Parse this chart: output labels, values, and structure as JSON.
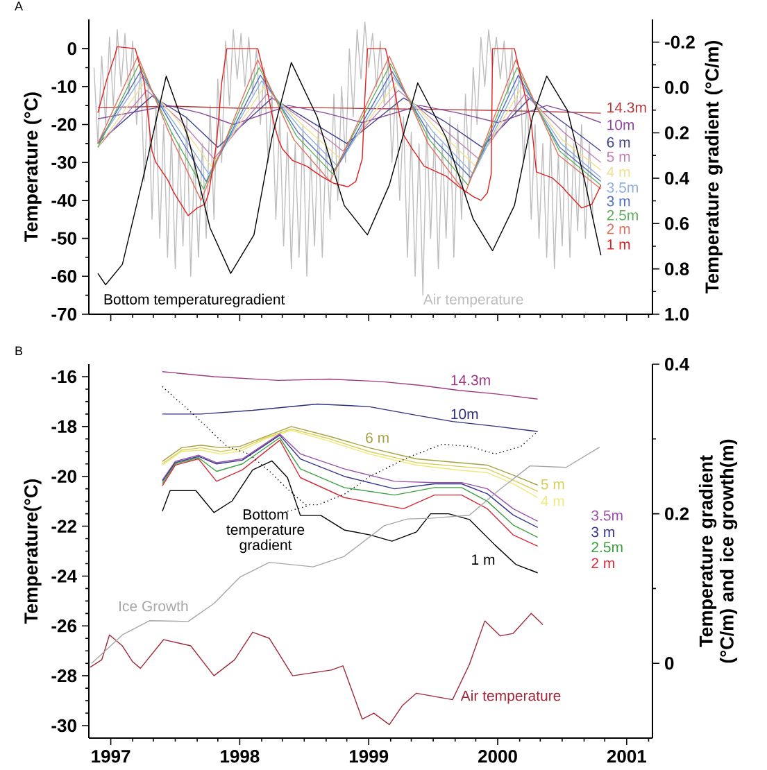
{
  "chart_data": [
    {
      "type": "line",
      "title": "A",
      "ylabel": "Temperature (°C)",
      "y2label": "Temperature gradient (°C/m)",
      "xlim": [
        1996.83,
        2001.2
      ],
      "ylim": [
        -70,
        7.7
      ],
      "y2lim": [
        1.0,
        -0.3
      ],
      "tick_labels": "y",
      "xticks": [
        1997,
        1998,
        1999,
        2000,
        2001,
        {
          "value": 1997.17,
          "label": null
        },
        {
          "value": 1997.33,
          "label": null
        },
        {
          "value": 1997.5,
          "label": null
        },
        {
          "value": 1997.67,
          "label": null
        },
        {
          "value": 1997.83,
          "label": null
        },
        {
          "value": 1998.17,
          "label": null
        },
        {
          "value": 1998.33,
          "label": null
        },
        {
          "value": 1998.5,
          "label": null
        },
        {
          "value": 1998.67,
          "label": null
        },
        {
          "value": 1998.83,
          "label": null
        },
        {
          "value": 1999.17,
          "label": null
        },
        {
          "value": 1999.33,
          "label": null
        },
        {
          "value": 1999.5,
          "label": null
        },
        {
          "value": 1999.67,
          "label": null
        },
        {
          "value": 1999.83,
          "label": null
        },
        {
          "value": 2000.17,
          "label": null
        },
        {
          "value": 2000.33,
          "label": null
        },
        {
          "value": 2000.5,
          "label": null
        },
        {
          "value": 2000.67,
          "label": null
        },
        {
          "value": 2000.83,
          "label": null
        },
        {
          "value": 2001.17,
          "label": null
        }
      ],
      "yticks": [
        0,
        -10,
        -20,
        -30,
        -40,
        -50,
        -60,
        -70,
        {
          "value": -5,
          "label": null
        },
        {
          "value": -15,
          "label": null
        },
        {
          "value": -25,
          "label": null
        },
        {
          "value": -35,
          "label": null
        },
        {
          "value": -45,
          "label": null
        },
        {
          "value": -55,
          "label": null
        },
        {
          "value": -65,
          "label": null
        }
      ],
      "y2ticks": [
        -0.2,
        {
          "value": 0,
          "label": "0.0"
        },
        0.2,
        0.4,
        0.6,
        0.8,
        {
          "value": 1,
          "label": "1.0"
        },
        {
          "value": -0.1,
          "label": null
        },
        {
          "value": 0.1,
          "label": null
        },
        {
          "value": 0.3,
          "label": null
        },
        {
          "value": 0.5,
          "label": null
        },
        {
          "value": 0.7,
          "label": null
        },
        {
          "value": 0.9,
          "label": null
        }
      ],
      "series": [
        {
          "name": "Air temperature",
          "color": "#bdbdbd",
          "x": [
            1996.87,
            1996.9,
            1996.93,
            1996.96,
            1996.99,
            1997.02,
            1997.05,
            1997.08,
            1997.11,
            1997.14,
            1997.17,
            1997.2,
            1997.23,
            1997.26,
            1997.29,
            1997.32,
            1997.35,
            1997.38,
            1997.41,
            1997.44,
            1997.47,
            1997.5,
            1997.53,
            1997.56,
            1997.59,
            1997.62,
            1997.65,
            1997.68,
            1997.71,
            1997.74,
            1997.77,
            1997.8,
            1997.83,
            1997.86,
            1997.89,
            1997.92,
            1997.95,
            1997.98,
            1998.01,
            1998.04,
            1998.07,
            1998.1,
            1998.13,
            1998.16,
            1998.19,
            1998.22,
            1998.25,
            1998.28,
            1998.31,
            1998.34,
            1998.37,
            1998.4,
            1998.43,
            1998.46,
            1998.49,
            1998.52,
            1998.55,
            1998.58,
            1998.61,
            1998.64,
            1998.67,
            1998.7,
            1998.73,
            1998.76,
            1998.79,
            1998.82,
            1998.85,
            1998.88,
            1998.91,
            1998.94,
            1998.97,
            1999.0,
            1999.03,
            1999.06,
            1999.09,
            1999.12,
            1999.15,
            1999.18,
            1999.21,
            1999.24,
            1999.27,
            1999.3,
            1999.33,
            1999.36,
            1999.39,
            1999.42,
            1999.45,
            1999.48,
            1999.51,
            1999.54,
            1999.57,
            1999.6,
            1999.63,
            1999.66,
            1999.69,
            1999.72,
            1999.75,
            1999.78,
            1999.81,
            1999.84,
            1999.87,
            1999.9,
            1999.93,
            1999.96,
            1999.99,
            2000.02,
            2000.05,
            2000.08,
            2000.11,
            2000.14,
            2000.17,
            2000.2,
            2000.23,
            2000.26,
            2000.29,
            2000.32,
            2000.35,
            2000.38,
            2000.41,
            2000.44,
            2000.47,
            2000.5,
            2000.53,
            2000.56,
            2000.59,
            2000.62,
            2000.65,
            2000.68,
            2000.71,
            2000.74
          ],
          "values": [
            -5,
            -25,
            -2,
            -20,
            3,
            -15,
            5,
            -10,
            4,
            -12,
            2,
            -20,
            -5,
            -35,
            -10,
            -45,
            -15,
            -50,
            -20,
            -55,
            -22,
            -58,
            -25,
            -52,
            -18,
            -60,
            -28,
            -55,
            -25,
            -50,
            -15,
            -45,
            -8,
            -30,
            2,
            -15,
            5,
            -8,
            4,
            -10,
            3,
            -12,
            0,
            -20,
            -5,
            -30,
            -12,
            -45,
            -18,
            -52,
            -22,
            -58,
            -25,
            -55,
            -20,
            -60,
            -28,
            -52,
            -20,
            -55,
            -25,
            -45,
            -12,
            -40,
            -10,
            -30,
            0,
            -18,
            5,
            -8,
            7,
            -5,
            4,
            -10,
            2,
            -15,
            -3,
            -30,
            -10,
            -40,
            -18,
            -55,
            -22,
            -60,
            -25,
            -65,
            -20,
            -50,
            -22,
            -58,
            -25,
            -50,
            -18,
            -55,
            -20,
            -45,
            -12,
            -35,
            -5,
            -20,
            3,
            -10,
            5,
            -5,
            3,
            -8,
            2,
            -12,
            0,
            -18,
            -5,
            -30,
            -12,
            -45,
            -20,
            -50,
            -25,
            -55,
            -22,
            -58,
            -28,
            -52,
            -20,
            -55,
            -25,
            -48,
            -20,
            -50,
            -25,
            -45
          ]
        },
        {
          "name": "14.3m",
          "color": "#b03a3a",
          "x": [
            1996.9,
            1997.5,
            1998.0,
            1998.5,
            1999.0,
            1999.5,
            2000.0,
            2000.5,
            2000.8
          ],
          "values": [
            -15.5,
            -15.2,
            -15.7,
            -15.5,
            -15.8,
            -16,
            -16.3,
            -16.7,
            -17
          ]
        },
        {
          "name": "10m",
          "color": "#8a4a9a",
          "x": [
            1996.9,
            1997.45,
            1997.7,
            1997.95,
            1998.38,
            1998.67,
            1998.95,
            1999.4,
            1999.7,
            2000.0,
            2000.38,
            2000.6,
            2000.8
          ],
          "values": [
            -18.5,
            -15,
            -17,
            -20,
            -15,
            -17,
            -19.5,
            -15,
            -17,
            -19.5,
            -15,
            -17,
            -19.5
          ]
        },
        {
          "name": "6 m",
          "color": "#404090",
          "x": [
            1996.9,
            1997.32,
            1997.58,
            1997.83,
            1998.25,
            1998.54,
            1998.83,
            1999.27,
            1999.58,
            1999.88,
            2000.25,
            2000.53,
            2000.8
          ],
          "values": [
            -25,
            -12.5,
            -18,
            -26,
            -13,
            -19,
            -25,
            -13,
            -19,
            -26,
            -13,
            -20,
            -27
          ]
        },
        {
          "name": "5 m",
          "color": "#c080b0",
          "x": [
            1996.9,
            1997.28,
            1997.54,
            1997.8,
            1998.21,
            1998.5,
            1998.8,
            1999.23,
            1999.54,
            1999.85,
            2000.21,
            2000.51,
            2000.8
          ],
          "values": [
            -26,
            -11,
            -19,
            -29,
            -12,
            -19,
            -27,
            -11,
            -20,
            -29,
            -12,
            -22,
            -30
          ]
        },
        {
          "name": "4 m",
          "color": "#f0e090",
          "x": [
            1996.9,
            1997.26,
            1997.52,
            1997.78,
            1998.19,
            1998.48,
            1998.78,
            1999.21,
            1999.52,
            1999.83,
            2000.19,
            2000.5,
            2000.8
          ],
          "values": [
            -26,
            -9,
            -19,
            -31,
            -10,
            -20,
            -29,
            -9,
            -21,
            -31,
            -10,
            -24,
            -32
          ]
        },
        {
          "name": "3.5m",
          "color": "#90b0e0",
          "x": [
            1996.9,
            1997.24,
            1997.5,
            1997.76,
            1998.17,
            1998.47,
            1998.76,
            1999.19,
            1999.5,
            1999.81,
            2000.17,
            2000.49,
            2000.8
          ],
          "values": [
            -25,
            -7.5,
            -20,
            -33,
            -8.5,
            -21,
            -31,
            -7.5,
            -22,
            -33,
            -8.5,
            -25,
            -34
          ]
        },
        {
          "name": "3 m",
          "color": "#5070c0",
          "x": [
            1996.9,
            1997.23,
            1997.49,
            1997.74,
            1998.16,
            1998.45,
            1998.74,
            1999.18,
            1999.48,
            1999.79,
            2000.16,
            2000.48,
            2000.8
          ],
          "values": [
            -25,
            -6,
            -21,
            -35,
            -7,
            -22,
            -32,
            -6,
            -23,
            -34,
            -7,
            -26,
            -35
          ]
        },
        {
          "name": "2.5m",
          "color": "#60b060",
          "x": [
            1996.9,
            1997.22,
            1997.47,
            1997.72,
            1998.15,
            1998.44,
            1998.72,
            1999.17,
            1999.47,
            1999.77,
            2000.15,
            2000.48,
            2000.8
          ],
          "values": [
            -26,
            -4,
            -22,
            -37,
            -5,
            -23,
            -33,
            -4,
            -24,
            -36,
            -5,
            -27,
            -36
          ]
        },
        {
          "name": "2 m",
          "color": "#e07060",
          "x": [
            1996.9,
            1997.21,
            1997.45,
            1997.7,
            1998.14,
            1998.42,
            1998.7,
            1999.16,
            1999.46,
            1999.75,
            2000.14,
            2000.47,
            2000.8
          ],
          "values": [
            -25,
            -2,
            -22,
            -40,
            -3,
            -24,
            -35,
            -2,
            -25,
            -38,
            -3,
            -28,
            -37
          ]
        },
        {
          "name": "1 m",
          "color": "#e02020",
          "x": [
            1996.9,
            1996.97,
            1997.03,
            1997.05,
            1997.19,
            1997.26,
            1997.32,
            1997.35,
            1997.44,
            1997.49,
            1997.6,
            1997.67,
            1997.73,
            1997.76,
            1997.82,
            1997.86,
            1997.9,
            1998.14,
            1998.19,
            1998.26,
            1998.3,
            1998.33,
            1998.41,
            1998.52,
            1998.63,
            1998.73,
            1998.84,
            1998.9,
            1998.95,
            1998.97,
            1998.99,
            1999.13,
            1999.17,
            1999.22,
            1999.27,
            1999.33,
            1999.43,
            1999.6,
            1999.7,
            1999.81,
            1999.87,
            1999.92,
            1999.95,
            1999.96,
            2000.13,
            2000.26,
            2000.3,
            2000.42,
            2000.5,
            2000.53,
            2000.65,
            2000.73,
            2000.8
          ],
          "values": [
            -16.9,
            -8,
            -2,
            0.5,
            0,
            -9,
            -27,
            -30,
            -34.5,
            -38,
            -44,
            -42,
            -41,
            -38,
            -25,
            -9,
            0,
            0,
            -7,
            -19,
            -24,
            -26.4,
            -29.5,
            -31,
            -33.6,
            -35.5,
            -36.4,
            -35,
            -29,
            -13,
            0,
            0,
            -5.5,
            -14.5,
            -22.7,
            -26,
            -31,
            -33.6,
            -36.4,
            -39,
            -40,
            -38,
            -33,
            0,
            0,
            -19.5,
            -32.5,
            -34,
            -36.4,
            -37.6,
            -42,
            -41,
            -36
          ]
        },
        {
          "name": "Bottom temperaturegradient",
          "color": "#000000",
          "axis": "y2",
          "x": [
            1996.9,
            1996.96,
            1997.09,
            1997.25,
            1997.43,
            1997.6,
            1997.77,
            1997.93,
            1998.11,
            1998.25,
            1998.4,
            1998.6,
            1998.81,
            1998.99,
            1999.16,
            1999.38,
            1999.6,
            1999.81,
            1999.96,
            2000.13,
            2000.27,
            2000.38,
            2000.54,
            2000.67,
            2000.8
          ],
          "values": [
            0.82,
            0.87,
            0.78,
            0.4,
            -0.05,
            0.22,
            0.62,
            0.82,
            0.65,
            0.22,
            -0.11,
            0.13,
            0.52,
            0.65,
            0.43,
            -0.02,
            0.22,
            0.58,
            0.72,
            0.52,
            0.13,
            -0.05,
            0.1,
            0.4,
            0.74
          ]
        }
      ]
    },
    {
      "type": "line",
      "title": "B",
      "ylabel": "Temperature(°C)",
      "y2label": "Temperature gradient (°C/m) and ice growth(m)",
      "xlim": [
        1996.83,
        2001.2
      ],
      "ylim": [
        -30.5,
        -15.5
      ],
      "y2lim": [
        -0.1,
        0.4
      ],
      "xticks": [
        1997,
        1998,
        1999,
        2000,
        2001,
        {
          "value": 1997.17,
          "label": null
        },
        {
          "value": 1997.33,
          "label": null
        },
        {
          "value": 1997.5,
          "label": null
        },
        {
          "value": 1997.67,
          "label": null
        },
        {
          "value": 1997.83,
          "label": null
        },
        {
          "value": 1998.17,
          "label": null
        },
        {
          "value": 1998.33,
          "label": null
        },
        {
          "value": 1998.5,
          "label": null
        },
        {
          "value": 1998.67,
          "label": null
        },
        {
          "value": 1998.83,
          "label": null
        },
        {
          "value": 1999.17,
          "label": null
        },
        {
          "value": 1999.33,
          "label": null
        },
        {
          "value": 1999.5,
          "label": null
        },
        {
          "value": 1999.67,
          "label": null
        },
        {
          "value": 1999.83,
          "label": null
        },
        {
          "value": 2000.17,
          "label": null
        },
        {
          "value": 2000.33,
          "label": null
        },
        {
          "value": 2000.5,
          "label": null
        },
        {
          "value": 2000.67,
          "label": null
        },
        {
          "value": 2000.83,
          "label": null
        },
        {
          "value": 2001.17,
          "label": null
        }
      ],
      "yticks": [
        -16,
        -18,
        -20,
        -22,
        -24,
        -26,
        -28,
        -30,
        {
          "value": -16.5,
          "label": null
        },
        {
          "value": -17,
          "label": null
        },
        {
          "value": -17.5,
          "label": null
        },
        {
          "value": -18.5,
          "label": null
        },
        {
          "value": -19,
          "label": null
        },
        {
          "value": -19.5,
          "label": null
        },
        {
          "value": -20.5,
          "label": null
        },
        {
          "value": -21,
          "label": null
        },
        {
          "value": -21.5,
          "label": null
        },
        {
          "value": -22.5,
          "label": null
        },
        {
          "value": -23,
          "label": null
        },
        {
          "value": -23.5,
          "label": null
        },
        {
          "value": -24.5,
          "label": null
        },
        {
          "value": -25,
          "label": null
        },
        {
          "value": -25.5,
          "label": null
        },
        {
          "value": -26.5,
          "label": null
        },
        {
          "value": -27,
          "label": null
        },
        {
          "value": -27.5,
          "label": null
        },
        {
          "value": -28.5,
          "label": null
        },
        {
          "value": -29,
          "label": null
        },
        {
          "value": -29.5,
          "label": null
        }
      ],
      "y2ticks": [
        0,
        0.2,
        0.4,
        {
          "value": 0.1,
          "label": null
        },
        {
          "value": 0.3,
          "label": null
        }
      ],
      "series": [
        {
          "name": "14.3m",
          "color": "#a03a80",
          "x": [
            1997.4,
            1997.8,
            1998.3,
            1998.7,
            1999.1,
            1999.4,
            1999.7,
            2000.0,
            2000.31
          ],
          "values": [
            -15.8,
            -16.0,
            -16.15,
            -16.1,
            -16.2,
            -16.35,
            -16.55,
            -16.7,
            -16.9
          ]
        },
        {
          "name": "10m",
          "color": "#2e2e7e",
          "x": [
            1997.4,
            1997.7,
            1998.1,
            1998.6,
            1999.0,
            1999.37,
            1999.65,
            2000.0,
            2000.31
          ],
          "values": [
            -17.5,
            -17.5,
            -17.35,
            -17.1,
            -17.2,
            -17.55,
            -17.8,
            -18.0,
            -18.2
          ]
        },
        {
          "name": "6 m",
          "color": "#a8a040",
          "x": [
            1997.4,
            1997.55,
            1997.7,
            1997.85,
            1998.0,
            1998.2,
            1998.4,
            1998.7,
            1999.0,
            1999.37,
            1999.7,
            1999.92,
            2000.12,
            2000.31
          ],
          "values": [
            -19.4,
            -18.85,
            -18.75,
            -18.85,
            -18.8,
            -18.4,
            -18.0,
            -18.4,
            -18.85,
            -19.3,
            -19.45,
            -19.55,
            -19.95,
            -20.35
          ]
        },
        {
          "name": "5 m",
          "color": "#d8cf55",
          "x": [
            1997.4,
            1997.55,
            1997.7,
            1997.85,
            1998.0,
            1998.2,
            1998.4,
            1998.7,
            1999.0,
            1999.37,
            1999.7,
            1999.92,
            2000.12,
            2000.31
          ],
          "values": [
            -19.5,
            -18.95,
            -18.85,
            -19.0,
            -18.9,
            -18.45,
            -18.1,
            -18.5,
            -19.0,
            -19.45,
            -19.6,
            -19.7,
            -20.15,
            -20.6
          ]
        },
        {
          "name": "4 m",
          "color": "#efe878",
          "x": [
            1997.4,
            1997.55,
            1997.7,
            1997.85,
            1998.0,
            1998.2,
            1998.4,
            1998.7,
            1999.0,
            1999.37,
            1999.7,
            1999.92,
            2000.12,
            2000.31
          ],
          "values": [
            -19.55,
            -19.0,
            -18.95,
            -19.1,
            -19.0,
            -18.5,
            -18.15,
            -18.6,
            -19.1,
            -19.55,
            -19.75,
            -19.85,
            -20.3,
            -20.85
          ]
        },
        {
          "name": "3.5m",
          "color": "#9a50a8",
          "x": [
            1997.4,
            1997.5,
            1997.68,
            1997.82,
            1998.02,
            1998.31,
            1998.47,
            1998.81,
            1999.2,
            1999.51,
            1999.72,
            1999.92,
            2000.12,
            2000.31
          ],
          "values": [
            -20.15,
            -19.4,
            -19.15,
            -19.45,
            -19.3,
            -18.3,
            -19.1,
            -19.7,
            -20.2,
            -20.25,
            -20.25,
            -20.5,
            -21.3,
            -21.8
          ]
        },
        {
          "name": "3 m",
          "color": "#34348e",
          "x": [
            1997.4,
            1997.5,
            1997.68,
            1997.82,
            1998.02,
            1998.31,
            1998.47,
            1998.81,
            1999.2,
            1999.51,
            1999.72,
            1999.92,
            2000.12,
            2000.31
          ],
          "values": [
            -20.2,
            -19.45,
            -19.2,
            -19.5,
            -19.35,
            -18.35,
            -19.3,
            -20.0,
            -20.5,
            -20.3,
            -20.3,
            -20.7,
            -21.55,
            -22.05
          ]
        },
        {
          "name": "2.5m",
          "color": "#3aa040",
          "x": [
            1997.4,
            1997.5,
            1997.68,
            1997.82,
            1998.02,
            1998.31,
            1998.47,
            1998.81,
            1999.2,
            1999.51,
            1999.72,
            1999.92,
            2000.12,
            2000.31
          ],
          "values": [
            -20.3,
            -19.5,
            -19.25,
            -19.8,
            -19.5,
            -18.45,
            -19.7,
            -20.45,
            -20.75,
            -20.45,
            -20.45,
            -21.0,
            -21.95,
            -22.45
          ]
        },
        {
          "name": "2 m",
          "color": "#d42a3a",
          "x": [
            1997.4,
            1997.5,
            1997.68,
            1997.82,
            1998.02,
            1998.31,
            1998.47,
            1998.81,
            1999.27,
            1999.51,
            1999.72,
            1999.92,
            2000.12,
            2000.31
          ],
          "values": [
            -20.38,
            -19.55,
            -19.3,
            -20.2,
            -19.74,
            -18.55,
            -20.05,
            -20.85,
            -21.3,
            -20.75,
            -20.75,
            -21.3,
            -22.35,
            -22.8
          ]
        },
        {
          "name": "1 m",
          "color": "#000000",
          "x": [
            1997.4,
            1997.46,
            1997.66,
            1997.8,
            1997.94,
            1998.1,
            1998.25,
            1998.37,
            1998.47,
            1998.63,
            1998.81,
            1999.01,
            1999.18,
            1999.37,
            1999.48,
            1999.62,
            1999.78,
            1999.98,
            2000.14,
            2000.31
          ],
          "values": [
            -21.4,
            -20.57,
            -20.57,
            -21.45,
            -20.99,
            -19.74,
            -19.38,
            -20.05,
            -21.57,
            -21.57,
            -22.15,
            -22.35,
            -22.6,
            -22.23,
            -21.5,
            -21.5,
            -21.73,
            -22.76,
            -23.53,
            -23.87
          ]
        },
        {
          "name": "Bottom temperature gradient",
          "color": "#000000",
          "axis": "y2",
          "line_style": "dotted",
          "x": [
            1997.4,
            1997.66,
            1997.9,
            1998.07,
            1998.23,
            1998.37,
            1998.51,
            1998.61,
            1998.81,
            1999.01,
            1999.3,
            1999.57,
            1999.78,
            1999.98,
            2000.18,
            2000.31
          ],
          "values": [
            0.37,
            0.33,
            0.29,
            0.28,
            0.257,
            0.233,
            0.212,
            0.212,
            0.226,
            0.25,
            0.275,
            0.293,
            0.29,
            0.28,
            0.29,
            0.31
          ]
        },
        {
          "name": "Ice Growth",
          "color": "#a6a6a6",
          "axis": "y2",
          "x": [
            1996.85,
            1996.89,
            1997.09,
            1997.3,
            1997.6,
            1997.8,
            1998.0,
            1998.23,
            1998.57,
            1998.81,
            1999.12,
            1999.3,
            1999.48,
            1999.78,
            2000.02,
            2000.25,
            2000.53,
            2000.79
          ],
          "values": [
            0,
            0.006,
            0.038,
            0.057,
            0.056,
            0.08,
            0.115,
            0.135,
            0.129,
            0.143,
            0.184,
            0.193,
            0.194,
            0.198,
            0.233,
            0.264,
            0.262,
            0.289
          ]
        },
        {
          "name": "Air temperature",
          "color": "#a02838",
          "x": [
            1996.84,
            1996.93,
            1996.99,
            1997.09,
            1997.17,
            1997.23,
            1997.41,
            1997.62,
            1997.8,
            1997.96,
            1998.1,
            1998.23,
            1998.41,
            1998.71,
            1998.8,
            1998.95,
            1999.04,
            1999.16,
            1999.26,
            1999.37,
            1999.65,
            1999.78,
            1999.9,
            2000.02,
            2000.12,
            2000.26,
            2000.35
          ],
          "values": [
            -27.66,
            -27.36,
            -26.36,
            -26.8,
            -27.44,
            -27.7,
            -26.55,
            -26.8,
            -28.0,
            -27.36,
            -26.25,
            -26.5,
            -28.0,
            -27.77,
            -27.6,
            -29.74,
            -29.5,
            -29.96,
            -29.2,
            -28.7,
            -28.96,
            -27.55,
            -25.8,
            -26.4,
            -26.3,
            -25.5,
            -25.95
          ]
        }
      ]
    }
  ]
}
